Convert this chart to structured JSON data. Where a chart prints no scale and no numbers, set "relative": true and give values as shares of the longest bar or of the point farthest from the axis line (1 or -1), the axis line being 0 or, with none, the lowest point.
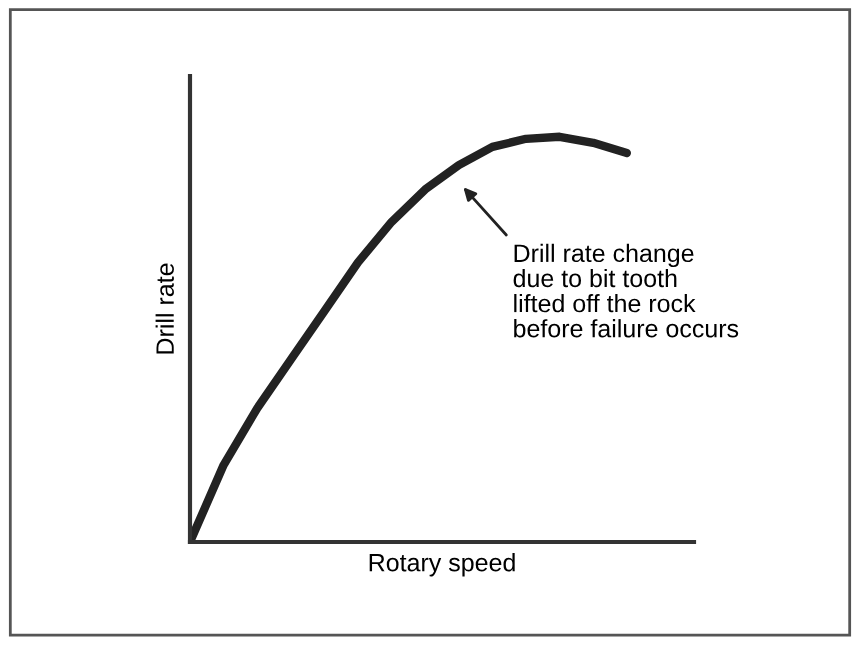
{
  "chart_data": {
    "type": "line",
    "relative": true,
    "xlabel": "Rotary speed",
    "ylabel": "Drill rate",
    "categories": [
      null,
      null,
      null,
      null,
      null,
      null,
      null,
      null,
      null,
      null,
      null,
      null,
      null,
      null,
      null,
      null
    ],
    "series": [
      {
        "color": "#222222",
        "values": [
          0,
          0.19,
          0.33,
          0.45,
          0.57,
          0.69,
          0.79,
          0.87,
          0.93,
          0.975,
          0.995,
          1.0,
          0.985,
          0.96,
          null,
          null
        ]
      }
    ],
    "annotations": [
      "Drill rate change\ndue to bit tooth\nlifted off the rock\nbefore failure occurs"
    ],
    "legend": false,
    "marker": "none",
    "line_style": "solid"
  }
}
